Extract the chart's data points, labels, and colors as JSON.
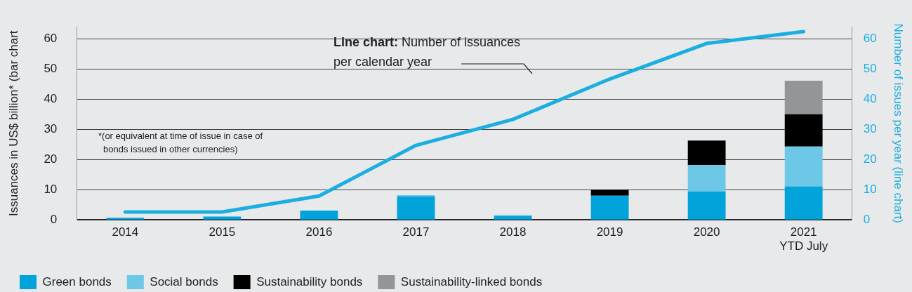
{
  "chart_data": {
    "type": "bar",
    "categories": [
      "2014",
      "2015",
      "2016",
      "2017",
      "2018",
      "2019",
      "2020",
      "2021\nYTD July"
    ],
    "series": [
      {
        "name": "Green bonds",
        "color": "#00a3da",
        "values": [
          0.7,
          1.1,
          3.1,
          7.8,
          1.2,
          8.0,
          9.4,
          11.1
        ]
      },
      {
        "name": "Social bonds",
        "color": "#6dc8e8",
        "values": [
          null,
          null,
          null,
          0.4,
          0.4,
          null,
          8.8,
          13.2
        ]
      },
      {
        "name": "Sustainability bonds",
        "color": "#000000",
        "values": [
          null,
          null,
          null,
          null,
          null,
          2.0,
          8.1,
          10.7
        ]
      },
      {
        "name": "Sustainability-linked bonds",
        "color": "#939598",
        "values": [
          null,
          null,
          null,
          null,
          null,
          null,
          null,
          11.1
        ]
      },
      {
        "type": "line",
        "axis": "y2",
        "color": "#1aafe0",
        "values": [
          2.6,
          2.6,
          7.9,
          24.7,
          33.3,
          46.7,
          58.5,
          62.4
        ]
      }
    ],
    "stacked": true,
    "ylabel": "Issuances in US$ billion* (bar chart",
    "y2label": "Number of issues per year (line chart)",
    "ylim": [
      0,
      64
    ],
    "yticks": [
      0,
      10,
      20,
      30,
      40,
      50,
      60
    ],
    "y2lim": [
      0,
      64
    ],
    "y2ticks": [
      0,
      10,
      20,
      30,
      40,
      50,
      60
    ],
    "annotations": [
      "Line chart: Number of issuances per calendar year",
      "*(or equivalent at time of issue in case of bonds issued in other currencies)"
    ],
    "grid": "y",
    "legend": "bottom",
    "marker": "none"
  }
}
